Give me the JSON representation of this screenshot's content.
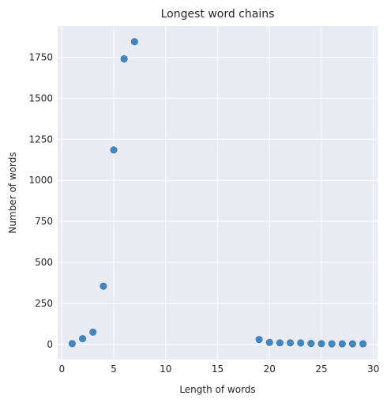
{
  "chart_data": {
    "type": "scatter",
    "title": "Longest word chains",
    "xlabel": "Length of words",
    "ylabel": "Number of words",
    "xlim": [
      -0.4,
      30.4
    ],
    "ylim": [
      -92,
      1940
    ],
    "xticks": [
      0,
      5,
      10,
      15,
      20,
      25,
      30
    ],
    "yticks": [
      0,
      250,
      500,
      750,
      1000,
      1250,
      1500,
      1750
    ],
    "grid": true,
    "colors": {
      "background": "#eaeaf2",
      "grid": "#ffffff",
      "point": "#3a80b9"
    },
    "points": [
      {
        "x": 1,
        "y": 5
      },
      {
        "x": 2,
        "y": 35
      },
      {
        "x": 3,
        "y": 75
      },
      {
        "x": 4,
        "y": 355
      },
      {
        "x": 5,
        "y": 1185
      },
      {
        "x": 6,
        "y": 1740
      },
      {
        "x": 7,
        "y": 1845
      },
      {
        "x": 19,
        "y": 30
      },
      {
        "x": 20,
        "y": 12
      },
      {
        "x": 21,
        "y": 10
      },
      {
        "x": 22,
        "y": 10
      },
      {
        "x": 23,
        "y": 9
      },
      {
        "x": 24,
        "y": 6
      },
      {
        "x": 25,
        "y": 5
      },
      {
        "x": 26,
        "y": 4
      },
      {
        "x": 27,
        "y": 4
      },
      {
        "x": 28,
        "y": 4
      },
      {
        "x": 29,
        "y": 4
      }
    ]
  }
}
